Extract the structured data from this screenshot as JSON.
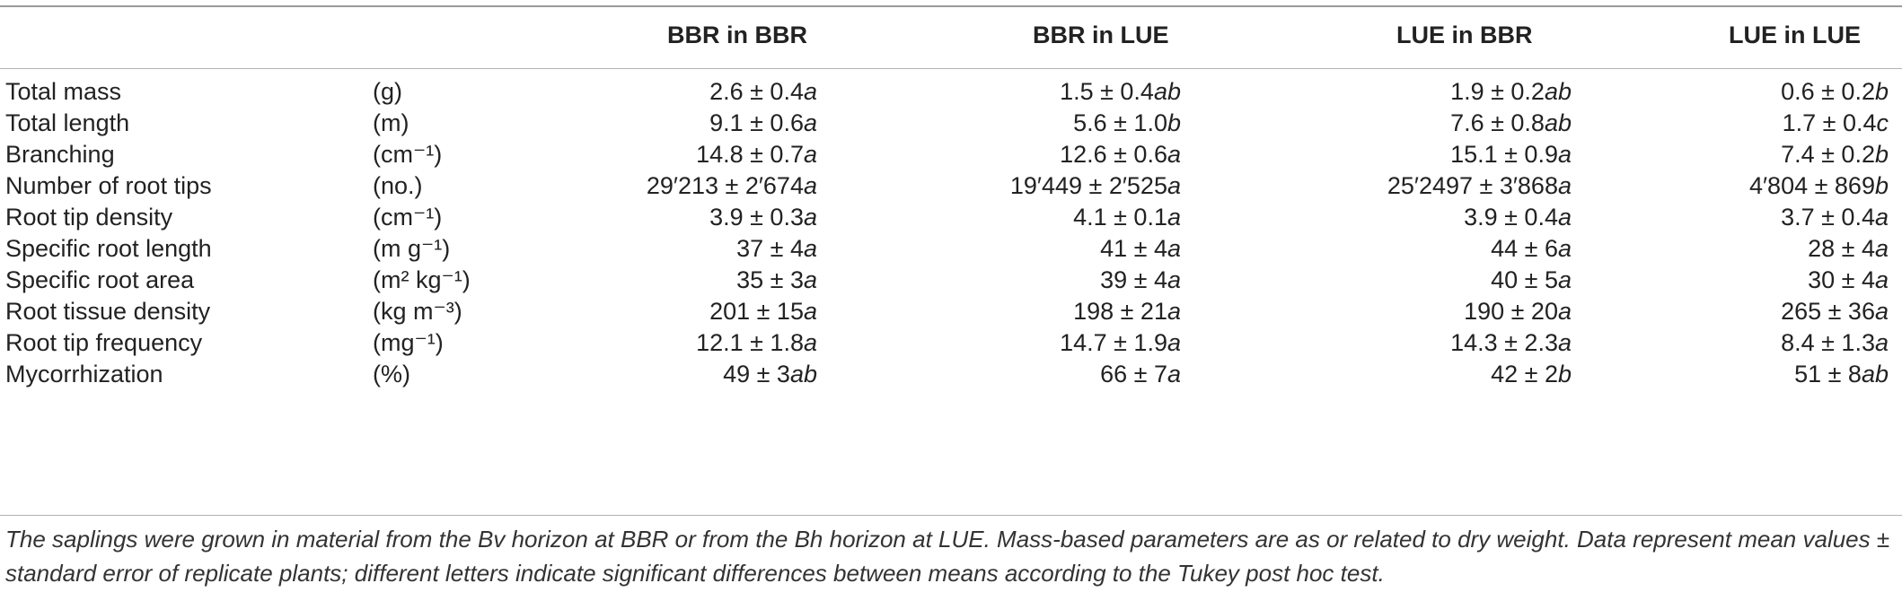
{
  "table": {
    "headers": [
      "",
      "",
      "BBR in BBR",
      "BBR in LUE",
      "LUE in BBR",
      "LUE in LUE"
    ],
    "rows": [
      {
        "param": "Total mass",
        "unit": "(g)",
        "values": [
          "2.6 ± 0.4a",
          "1.5 ± 0.4ab",
          "1.9 ± 0.2ab",
          "0.6 ± 0.2b"
        ]
      },
      {
        "param": "Total length",
        "unit": "(m)",
        "values": [
          "9.1 ± 0.6a",
          "5.6 ± 1.0b",
          "7.6 ± 0.8ab",
          "1.7 ± 0.4c"
        ]
      },
      {
        "param": "Branching",
        "unit": "(cm⁻¹)",
        "values": [
          "14.8 ± 0.7a",
          "12.6 ± 0.6a",
          "15.1 ± 0.9a",
          "7.4 ± 0.2b"
        ]
      },
      {
        "param": "Number of root tips",
        "unit": "(no.)",
        "values": [
          "29′213 ± 2′674a",
          "19′449 ± 2′525a",
          "25′2497 ± 3′868a",
          "4′804 ± 869b"
        ]
      },
      {
        "param": "Root tip density",
        "unit": "(cm⁻¹)",
        "values": [
          "3.9 ± 0.3a",
          "4.1 ± 0.1a",
          "3.9 ± 0.4a",
          "3.7 ± 0.4a"
        ]
      },
      {
        "param": "Specific root length",
        "unit": "(m g⁻¹)",
        "values": [
          "37 ± 4a",
          "41 ± 4a",
          "44 ± 6a",
          "28 ± 4a"
        ]
      },
      {
        "param": "Specific root area",
        "unit": "(m² kg⁻¹)",
        "values": [
          "35 ± 3a",
          "39 ± 4a",
          "40 ± 5a",
          "30 ± 4a"
        ]
      },
      {
        "param": "Root tissue density",
        "unit": "(kg m⁻³)",
        "values": [
          "201 ± 15a",
          "198 ± 21a",
          "190 ± 20a",
          "265 ± 36a"
        ]
      },
      {
        "param": "Root tip frequency",
        "unit": "(mg⁻¹)",
        "values": [
          "12.1 ± 1.8a",
          "14.7 ± 1.9a",
          "14.3 ± 2.3a",
          "8.4 ± 1.3a"
        ]
      },
      {
        "param": "Mycorrhization",
        "unit": "(%)",
        "values": [
          "49 ± 3ab",
          "66 ± 7a",
          "42 ± 2b",
          "51 ± 8ab"
        ]
      }
    ]
  },
  "footnote": "The saplings were grown in material from the Bv horizon at BBR or from the Bh horizon at LUE. Mass-based parameters are as or related to dry weight. Data represent mean values ± standard error of replicate plants; different letters indicate significant differences between means according to the Tukey post hoc test."
}
